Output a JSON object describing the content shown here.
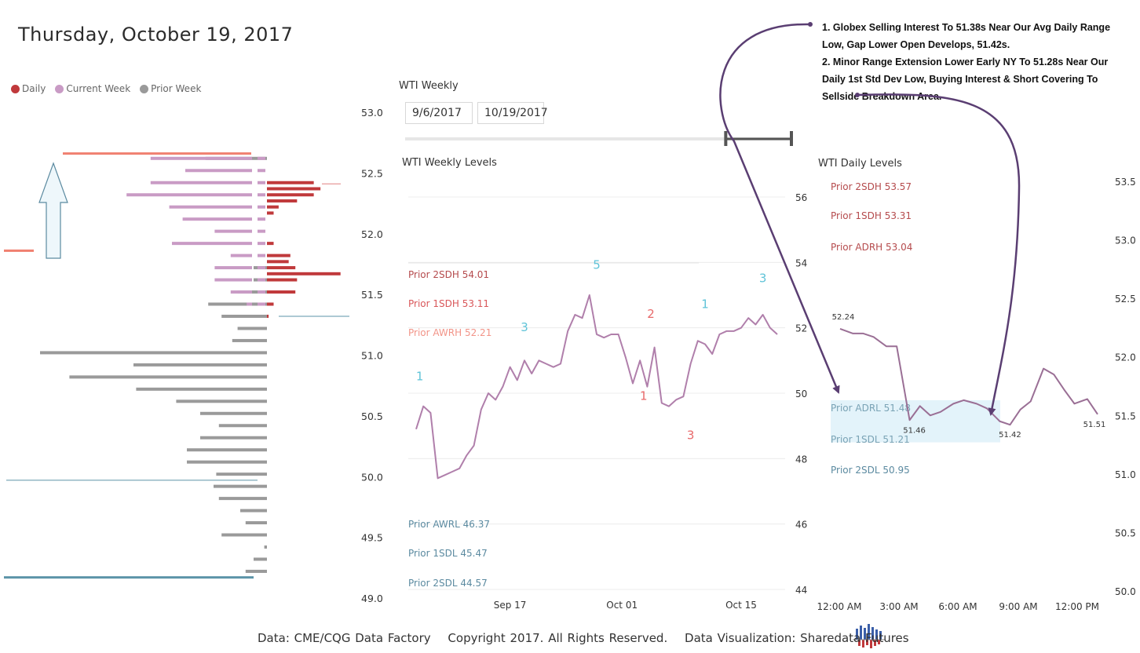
{
  "header": {
    "title": "Thursday, October 19, 2017"
  },
  "legend": [
    {
      "label": "Daily",
      "color": "#c0393b"
    },
    {
      "label": "Current Week",
      "color": "#c99bc5"
    },
    {
      "label": "Prior Week",
      "color": "#9a9a9a"
    }
  ],
  "weekly_panel": {
    "title": "WTI Weekly",
    "start_date": "9/6/2017",
    "end_date": "10/19/2017",
    "slider_range": [
      0.83,
      1.0
    ]
  },
  "footer": {
    "data_source": "Data: CME/CQG Data Factory",
    "copyright": "Copyright 2017. All Rights Reserved.",
    "viz": "Data Visualization: Sharedata Futures"
  },
  "annotations": [
    "1. Globex Selling Interest To 51.38s Near Our Avg Daily Range Low, Gap Lower Open Develops, 51.42s.",
    "2. Minor Range Extension Lower Early NY To 51.28s Near Our Daily 1st Std Dev Low, Buying Interest & Short Covering To Sellside Breakdown Area."
  ],
  "chart_data": [
    {
      "id": "volume-profile",
      "type": "bar",
      "orientation": "horizontal",
      "ylim": [
        49.0,
        53.0
      ],
      "yticks": [
        "53.0",
        "52.5",
        "52.0",
        "51.5",
        "51.0",
        "50.5",
        "50.0",
        "49.5",
        "49.0"
      ],
      "ytick_values": [
        53.0,
        52.5,
        52.0,
        51.5,
        51.0,
        50.5,
        50.0,
        49.5,
        49.0
      ],
      "series": [
        {
          "name": "Daily",
          "color": "#c0393b",
          "levels": [
            52.42,
            52.37,
            52.32,
            52.27,
            52.22,
            52.17,
            51.92,
            51.82,
            51.77,
            51.72,
            51.67,
            51.62,
            51.52,
            51.42,
            51.32
          ],
          "values": [
            0.28,
            0.32,
            0.28,
            0.18,
            0.07,
            0.04,
            0.04,
            0.14,
            0.13,
            0.17,
            0.44,
            0.18,
            0.17,
            0.04,
            0.01
          ]
        },
        {
          "name": "Current Week",
          "color": "#c99bc5",
          "levels": [
            52.62,
            52.52,
            52.42,
            52.32,
            52.22,
            52.12,
            52.02,
            51.92,
            51.82,
            51.72,
            51.62,
            51.52,
            51.42
          ],
          "values": [
            0.38,
            0.25,
            0.38,
            0.47,
            0.31,
            0.26,
            0.14,
            0.3,
            0.08,
            0.14,
            0.14,
            0.08,
            0.02
          ]
        },
        {
          "name": "Prior Week",
          "color": "#9a9a9a",
          "levels": [
            52.62,
            52.52,
            52.42,
            52.32,
            52.22,
            52.12,
            52.02,
            51.92,
            51.82,
            51.72,
            51.62,
            51.52,
            51.42,
            51.32,
            51.22,
            51.12,
            51.02,
            50.92,
            50.82,
            50.72,
            50.62,
            50.52,
            50.42,
            50.32,
            50.22,
            50.12,
            50.02,
            49.92,
            49.82,
            49.72,
            49.62,
            49.52,
            49.42,
            49.32,
            49.22
          ],
          "values": [
            0.23,
            0.0,
            0.0,
            0.0,
            0.0,
            0.0,
            0.0,
            0.0,
            0.0,
            0.05,
            0.05,
            0.11,
            0.22,
            0.17,
            0.11,
            0.13,
            0.85,
            0.5,
            0.74,
            0.49,
            0.34,
            0.25,
            0.18,
            0.25,
            0.3,
            0.3,
            0.19,
            0.2,
            0.18,
            0.1,
            0.08,
            0.17,
            0.01,
            0.05,
            0.08
          ]
        }
      ],
      "highlights": [
        {
          "name": "prior-high-marker",
          "level": 52.66,
          "color": "#f08070"
        },
        {
          "name": "prior-low-marker",
          "level": 51.86,
          "color": "#f08070"
        },
        {
          "name": "daily-open-line",
          "level": 51.32,
          "color": "#5b93a8"
        },
        {
          "name": "weekly-low-line",
          "level": 49.97,
          "color": "#5b93a8"
        },
        {
          "name": "prior-low-volume-line",
          "level": 49.17,
          "color": "#5b93a8"
        }
      ]
    },
    {
      "id": "weekly-levels",
      "title": "WTI Weekly Levels",
      "type": "line",
      "ylim": [
        44,
        57
      ],
      "yticks": [
        "56",
        "54",
        "52",
        "50",
        "48",
        "46",
        "44"
      ],
      "ytick_values": [
        56,
        54,
        52,
        50,
        48,
        46,
        44
      ],
      "xlabels": [
        "Sep 17",
        "Oct 01",
        "Oct 15"
      ],
      "xlabel_pos": [
        0.26,
        0.57,
        0.9
      ],
      "x": [
        0.0,
        0.02,
        0.04,
        0.06,
        0.08,
        0.1,
        0.12,
        0.14,
        0.16,
        0.18,
        0.2,
        0.22,
        0.24,
        0.26,
        0.28,
        0.3,
        0.32,
        0.34,
        0.36,
        0.38,
        0.4,
        0.42,
        0.44,
        0.46,
        0.48,
        0.5,
        0.52,
        0.54,
        0.56,
        0.58,
        0.6,
        0.62,
        0.64,
        0.66,
        0.68,
        0.7,
        0.72,
        0.74,
        0.76,
        0.78,
        0.8,
        0.82,
        0.84,
        0.86,
        0.88,
        0.9,
        0.92,
        0.94,
        0.96,
        0.98,
        1.0
      ],
      "y": [
        48.9,
        49.6,
        49.4,
        47.4,
        47.5,
        47.6,
        47.7,
        48.1,
        48.4,
        49.5,
        50.0,
        49.8,
        50.2,
        50.8,
        50.4,
        51.0,
        50.6,
        51.0,
        50.9,
        50.8,
        50.9,
        51.9,
        52.4,
        52.3,
        53.0,
        51.8,
        51.7,
        51.8,
        51.8,
        51.1,
        50.3,
        51.0,
        50.2,
        51.4,
        49.7,
        49.6,
        49.8,
        49.9,
        50.9,
        51.6,
        51.5,
        51.2,
        51.8,
        51.9,
        51.9,
        52.0,
        52.3,
        52.1,
        52.4,
        52.0,
        51.8
      ],
      "series_color": "#b07fab",
      "levels": [
        {
          "label": "Prior 2SDH 54.01",
          "value": 54.01,
          "color": "#b54b4d"
        },
        {
          "label": "Prior 1SDH 53.11",
          "value": 53.11,
          "color": "#d9575a"
        },
        {
          "label": "Prior AWRH 52.21",
          "value": 52.21,
          "color": "#f29488"
        },
        {
          "label": "Prior AWRL 46.37",
          "value": 46.37,
          "color": "#5b8aa0"
        },
        {
          "label": "Prior 1SDL 45.47",
          "value": 45.47,
          "color": "#5b8aa0"
        },
        {
          "label": "Prior 2SDL 44.57",
          "value": 44.57,
          "color": "#5b8aa0"
        }
      ],
      "wave_labels": [
        {
          "text": "1",
          "x": 0.01,
          "y": 50.4,
          "color": "#5fc3d8"
        },
        {
          "text": "3",
          "x": 0.3,
          "y": 51.9,
          "color": "#5fc3d8"
        },
        {
          "text": "5",
          "x": 0.5,
          "y": 53.8,
          "color": "#5fc3d8"
        },
        {
          "text": "2",
          "x": 0.65,
          "y": 52.3,
          "color": "#e8696a"
        },
        {
          "text": "1",
          "x": 0.63,
          "y": 49.8,
          "color": "#e8696a"
        },
        {
          "text": "3",
          "x": 0.76,
          "y": 48.6,
          "color": "#e8696a"
        },
        {
          "text": "1",
          "x": 0.8,
          "y": 52.6,
          "color": "#5fc3d8"
        },
        {
          "text": "3",
          "x": 0.96,
          "y": 53.4,
          "color": "#5fc3d8"
        }
      ]
    },
    {
      "id": "daily-levels",
      "title": "WTI Daily Levels",
      "type": "line",
      "ylim": [
        50.0,
        53.5
      ],
      "yticks": [
        "53.5",
        "53.0",
        "52.5",
        "52.0",
        "51.5",
        "51.0",
        "50.5",
        "50.0"
      ],
      "ytick_values": [
        53.5,
        53.0,
        52.5,
        52.0,
        51.5,
        51.0,
        50.5,
        50.0
      ],
      "xlabels": [
        "12:00 AM",
        "3:00 AM",
        "6:00 AM",
        "9:00 AM",
        "12:00 PM"
      ],
      "xlabel_pos": [
        0.0,
        0.3,
        0.59,
        0.88,
        1.17
      ],
      "x": [
        0.0,
        0.05,
        0.09,
        0.13,
        0.18,
        0.22,
        0.27,
        0.31,
        0.35,
        0.39,
        0.44,
        0.48,
        0.53,
        0.57,
        0.62,
        0.66,
        0.7,
        0.74,
        0.79,
        0.83,
        0.87,
        0.91,
        0.96,
        1.0
      ],
      "y": [
        52.24,
        52.2,
        52.2,
        52.17,
        52.09,
        52.09,
        51.46,
        51.58,
        51.5,
        51.53,
        51.6,
        51.63,
        51.6,
        51.56,
        51.45,
        51.42,
        51.55,
        51.62,
        51.9,
        51.85,
        51.72,
        51.6,
        51.64,
        51.51
      ],
      "series_color": "#9a6f95",
      "point_labels": [
        {
          "text": "52.24",
          "x": 0.0,
          "y": 52.24
        },
        {
          "text": "51.46",
          "x": 0.27,
          "y": 51.46
        },
        {
          "text": "51.42",
          "x": 0.66,
          "y": 51.42
        },
        {
          "text": "51.51",
          "x": 1.0,
          "y": 51.51
        }
      ],
      "levels": [
        {
          "label": "Prior 2SDH 53.57",
          "value": 53.57,
          "color": "#b54b4d"
        },
        {
          "label": "Prior 1SDH 53.31",
          "value": 53.31,
          "color": "#b54b4d"
        },
        {
          "label": "Prior ADRH 53.04",
          "value": 53.04,
          "color": "#b54b4d"
        },
        {
          "label": "Prior ADRL 51.48",
          "value": 51.48,
          "color": "#7aa3b5"
        },
        {
          "label": "Prior 1SDL 51.21",
          "value": 51.21,
          "color": "#7aa3b5"
        },
        {
          "label": "Prior 2SDL 50.95",
          "value": 50.95,
          "color": "#5b8aa0"
        }
      ],
      "band": {
        "from": 51.27,
        "to": 51.63,
        "color": "#e3f3fa"
      }
    }
  ]
}
